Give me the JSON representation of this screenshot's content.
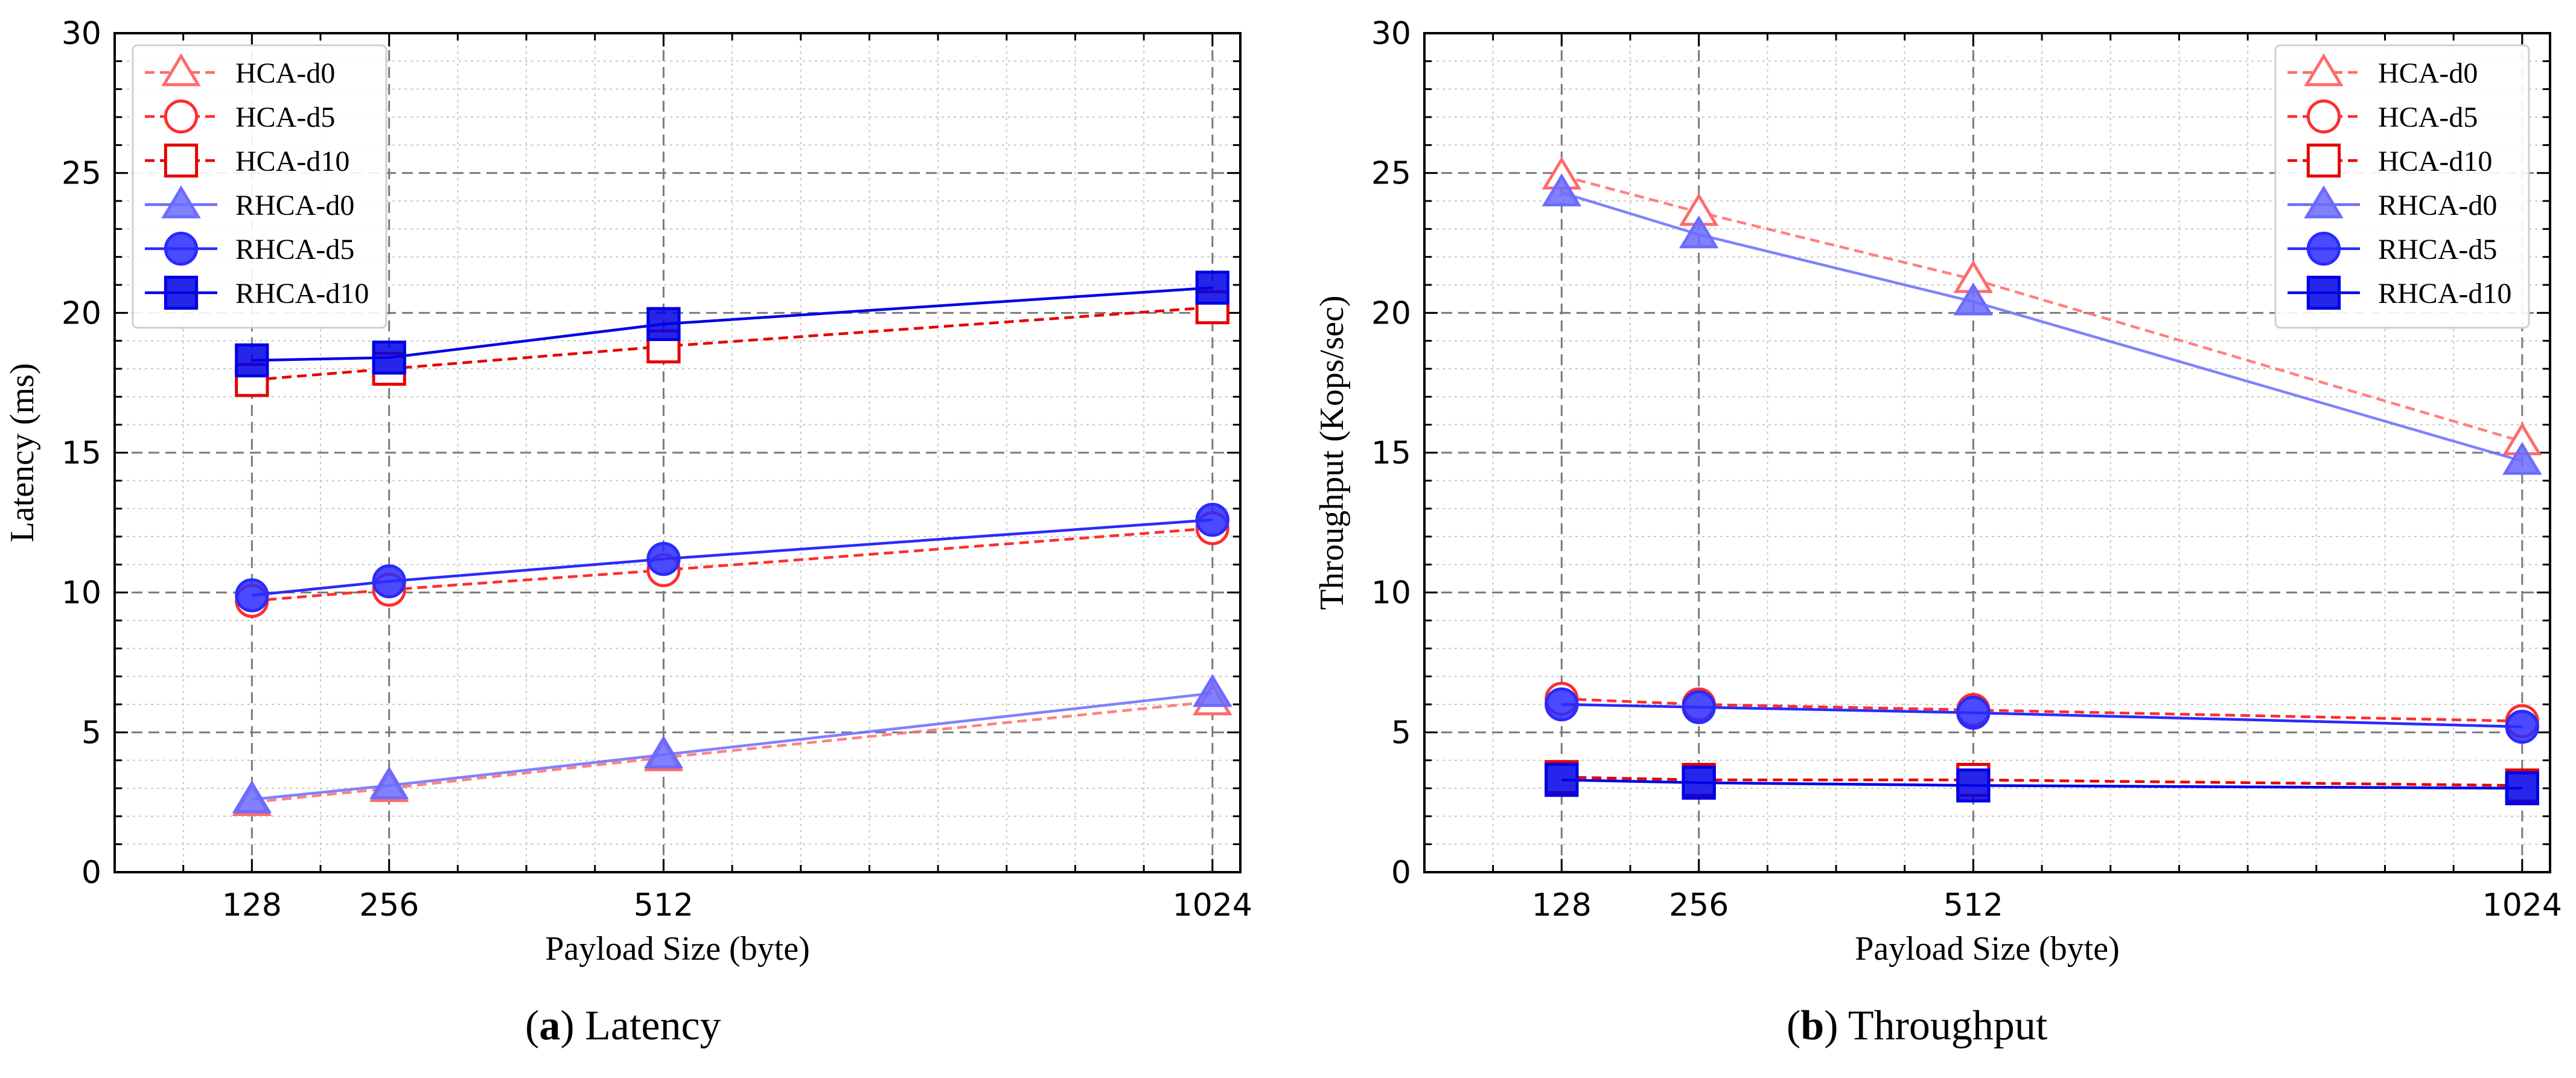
{
  "chart_data": [
    {
      "type": "line",
      "title": "Latency",
      "xlabel": "Payload Size (byte)",
      "ylabel": "Latency (ms)",
      "x": [
        128,
        256,
        512,
        1024
      ],
      "xticks": [
        "128",
        "256",
        "512",
        "1024"
      ],
      "yticks": [
        "0",
        "5",
        "10",
        "15",
        "20",
        "25",
        "30"
      ],
      "xlim": [
        0,
        1050
      ],
      "ylim": [
        0,
        30
      ],
      "grid": true,
      "legend": "top-left",
      "series": [
        {
          "name": "HCA-d0",
          "values": [
            2.5,
            3.0,
            4.1,
            6.1
          ],
          "color": "#ff6b6b",
          "dash": "dashed",
          "marker": "triangle-open"
        },
        {
          "name": "HCA-d5",
          "values": [
            9.7,
            10.1,
            10.8,
            12.3
          ],
          "color": "#ff2d2d",
          "dash": "dashed",
          "marker": "circle-open"
        },
        {
          "name": "HCA-d10",
          "values": [
            17.6,
            18.0,
            18.8,
            20.2
          ],
          "color": "#e60000",
          "dash": "dashed",
          "marker": "square-open"
        },
        {
          "name": "RHCA-d0",
          "values": [
            2.6,
            3.1,
            4.2,
            6.4
          ],
          "color": "#6b6bff",
          "dash": "solid",
          "marker": "triangle-filled"
        },
        {
          "name": "RHCA-d5",
          "values": [
            9.9,
            10.4,
            11.2,
            12.6
          ],
          "color": "#2a2aff",
          "dash": "solid",
          "marker": "circle-filled"
        },
        {
          "name": "RHCA-d10",
          "values": [
            18.3,
            18.4,
            19.6,
            20.9
          ],
          "color": "#0000e6",
          "dash": "solid",
          "marker": "square-filled"
        }
      ]
    },
    {
      "type": "line",
      "title": "Throughput",
      "xlabel": "Payload Size (byte)",
      "ylabel": "Throughput (Kops/sec)",
      "x": [
        128,
        256,
        512,
        1024
      ],
      "xticks": [
        "128",
        "256",
        "512",
        "1024"
      ],
      "yticks": [
        "0",
        "5",
        "10",
        "15",
        "20",
        "25",
        "30"
      ],
      "xlim": [
        0,
        1050
      ],
      "ylim": [
        0,
        30
      ],
      "grid": true,
      "legend": "top-right",
      "series": [
        {
          "name": "HCA-d0",
          "values": [
            24.9,
            23.6,
            21.2,
            15.4
          ],
          "color": "#ff6b6b",
          "dash": "dashed",
          "marker": "triangle-open"
        },
        {
          "name": "HCA-d5",
          "values": [
            6.2,
            6.0,
            5.8,
            5.4
          ],
          "color": "#ff2d2d",
          "dash": "dashed",
          "marker": "circle-open"
        },
        {
          "name": "HCA-d10",
          "values": [
            3.4,
            3.3,
            3.3,
            3.1
          ],
          "color": "#e60000",
          "dash": "dashed",
          "marker": "square-open"
        },
        {
          "name": "RHCA-d0",
          "values": [
            24.3,
            22.8,
            20.4,
            14.7
          ],
          "color": "#6b6bff",
          "dash": "solid",
          "marker": "triangle-filled"
        },
        {
          "name": "RHCA-d5",
          "values": [
            6.0,
            5.9,
            5.7,
            5.2
          ],
          "color": "#2a2aff",
          "dash": "solid",
          "marker": "circle-filled"
        },
        {
          "name": "RHCA-d10",
          "values": [
            3.3,
            3.2,
            3.1,
            3.0
          ],
          "color": "#0000e6",
          "dash": "solid",
          "marker": "square-filled"
        }
      ]
    }
  ],
  "captions": [
    {
      "letter": "a",
      "text": "Latency",
      "open": "(",
      "close": ")"
    },
    {
      "letter": "b",
      "text": "Throughput",
      "open": "(",
      "close": ")"
    }
  ]
}
